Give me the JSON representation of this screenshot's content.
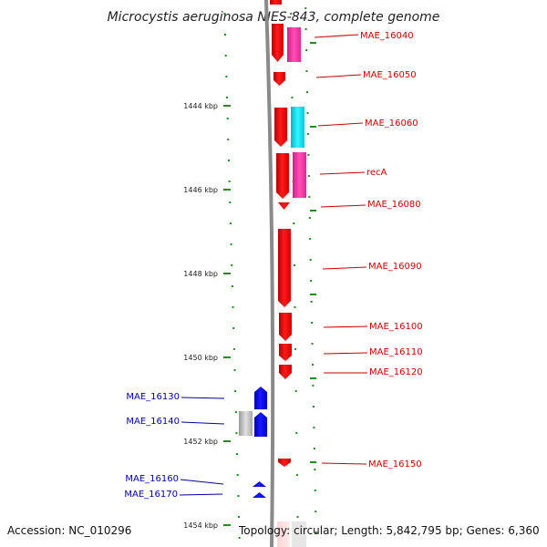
{
  "title": "Microcystis aeruginosa NIES-843, complete genome",
  "footer": {
    "accession": "Accession: NC_010296",
    "topology": "Topology: circular; Length: 5,842,795 bp; Genes: 6,360"
  },
  "colors": {
    "forward_gene": "#ff0000",
    "reverse_gene": "#0000ff",
    "forward_label": "#cc0000",
    "reverse_label": "#0000aa",
    "tick": "#228b22",
    "backbone": "#808080",
    "cyan_feature": "#00e5ee",
    "pink_feature": "#ff3ca8",
    "gray_feature": "#b8b8b8"
  },
  "scale": {
    "unit": "kbp",
    "tick_labels": [
      "1444 kbp",
      "1446 kbp",
      "1448 kbp",
      "1450 kbp",
      "1452 kbp",
      "1454 kbp"
    ]
  },
  "forward_labels": [
    "MAE_16040",
    "MAE_16050",
    "MAE_16060",
    "recA",
    "MAE_16080",
    "MAE_16090",
    "MAE_16100",
    "MAE_16110",
    "MAE_16120",
    "MAE_16150"
  ],
  "reverse_labels": [
    "MAE_16130",
    "MAE_16140",
    "MAE_16160",
    "MAE_16170"
  ]
}
